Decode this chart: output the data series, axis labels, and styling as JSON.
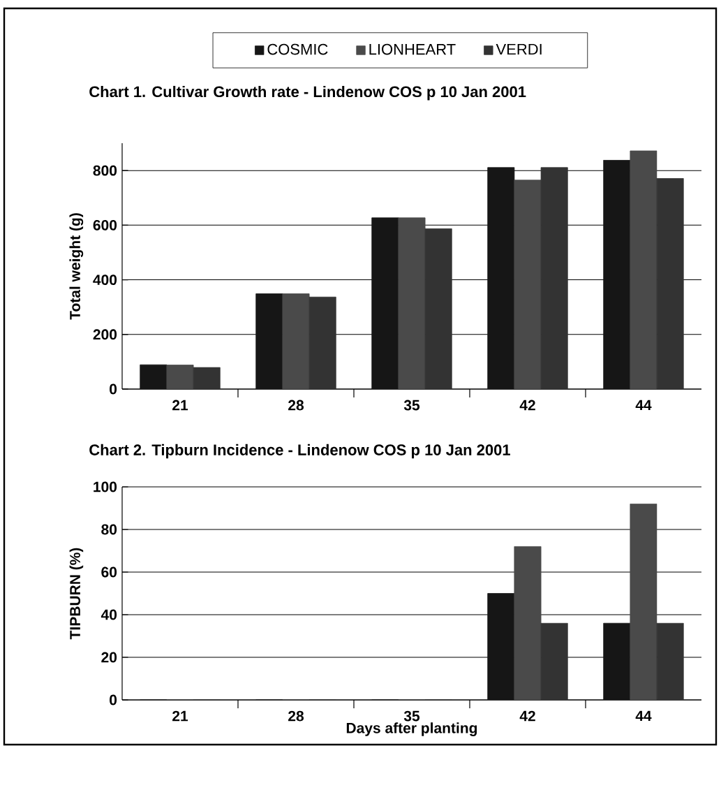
{
  "chart_data": [
    {
      "type": "bar",
      "title": "Chart 1.   Cultivar Growth rate - Lindenow COS  p 10 Jan 2001",
      "ylabel": "Total weight (g)",
      "categories": [
        "21",
        "28",
        "35",
        "42",
        "44"
      ],
      "series": [
        {
          "name": "COSMIC",
          "color": "#161616",
          "values": [
            89,
            349,
            627,
            811,
            838
          ]
        },
        {
          "name": "LIONHEART",
          "color": "#4a4a4a",
          "values": [
            88,
            349,
            627,
            765,
            872
          ]
        },
        {
          "name": "VERDI",
          "color": "#333333",
          "values": [
            79,
            337,
            587,
            811,
            771
          ]
        }
      ],
      "ylim": [
        0,
        900
      ],
      "yticks": [
        0,
        200,
        400,
        600,
        800
      ],
      "grid": "y",
      "legend": "top"
    },
    {
      "type": "bar",
      "title": "Chart 2.   Tipburn Incidence -  Lindenow COS  p 10 Jan 2001",
      "xlabel": "Days after planting",
      "ylabel": "TIPBURN (%)",
      "categories": [
        "21",
        "28",
        "35",
        "42",
        "44"
      ],
      "series": [
        {
          "color": "#161616",
          "values": [
            0,
            0,
            0,
            50,
            36
          ]
        },
        {
          "color": "#4a4a4a",
          "values": [
            0,
            0,
            0,
            72,
            92
          ]
        },
        {
          "color": "#333333",
          "values": [
            0,
            0,
            0,
            36,
            36
          ]
        }
      ],
      "ylim": [
        0,
        100
      ],
      "yticks": [
        0,
        20,
        40,
        60,
        80,
        100
      ],
      "grid": "y"
    }
  ]
}
